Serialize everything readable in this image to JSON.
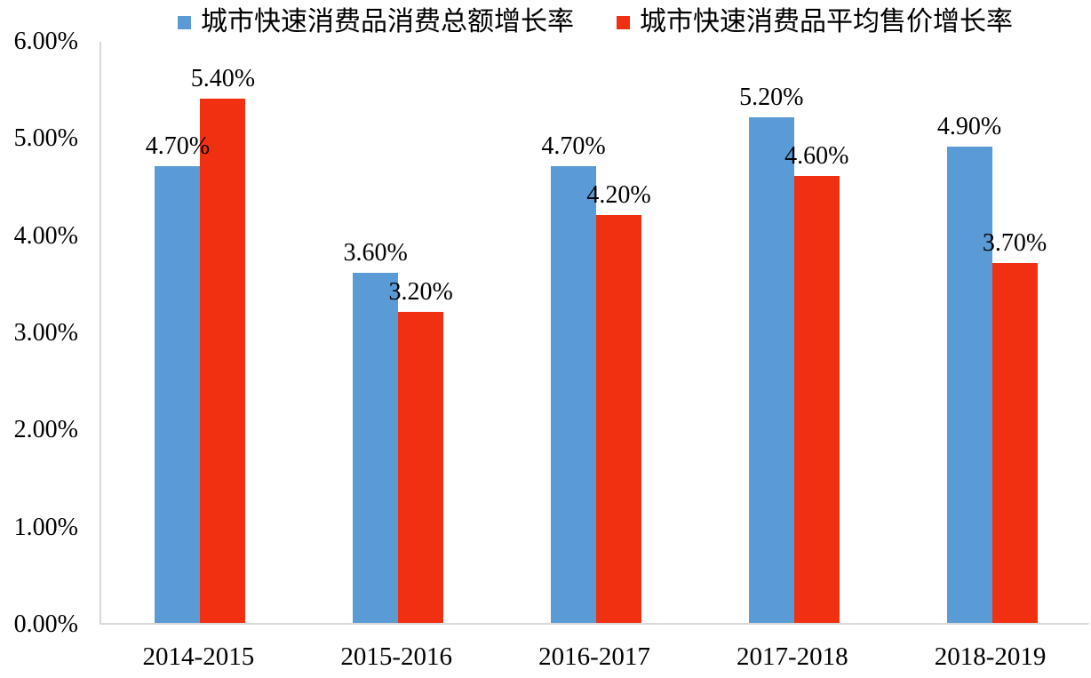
{
  "chart_data": {
    "type": "bar",
    "title": "",
    "xlabel": "",
    "ylabel": "",
    "categories": [
      "2014-2015",
      "2015-2016",
      "2016-2017",
      "2017-2018",
      "2018-2019"
    ],
    "series": [
      {
        "name": "城市快速消费品消费总额增长率",
        "color": "#5B9BD5",
        "values": [
          4.7,
          3.6,
          4.7,
          5.2,
          4.9
        ],
        "data_labels": [
          "4.70%",
          "3.60%",
          "4.70%",
          "5.20%",
          "4.90%"
        ]
      },
      {
        "name": "城市快速消费品平均售价增长率",
        "color": "#F03010",
        "values": [
          5.4,
          3.2,
          4.2,
          4.6,
          3.7
        ],
        "data_labels": [
          "5.40%",
          "3.20%",
          "4.20%",
          "4.60%",
          "3.70%"
        ]
      }
    ],
    "ylim": [
      0,
      6
    ],
    "ytick_step": 1,
    "ytick_labels": [
      "0.00%",
      "1.00%",
      "2.00%",
      "3.00%",
      "4.00%",
      "5.00%",
      "6.00%"
    ],
    "grid": false,
    "legend_position": "top",
    "axis_color": "#D9D9D9",
    "text_color": "#000000",
    "background_color": "#FFFFFF"
  }
}
